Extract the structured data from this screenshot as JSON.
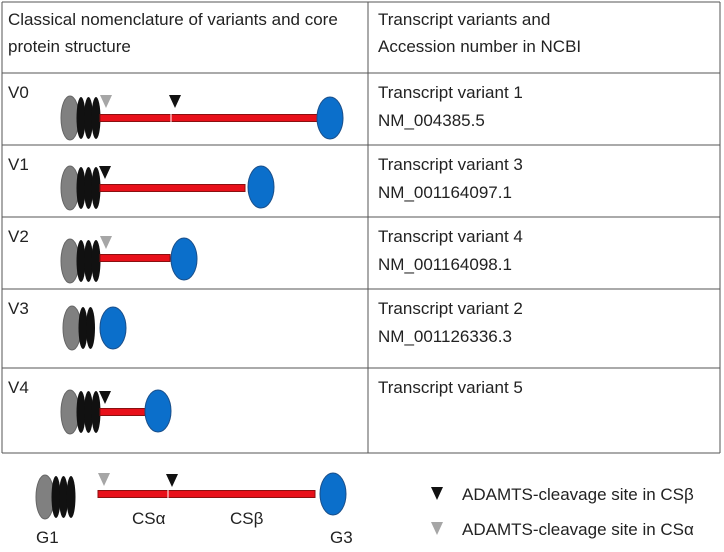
{
  "table": {
    "header": [
      "Classical nomenclature of variants and core protein structure",
      "Transcript variants and Accession number in NCBI"
    ],
    "rows": [
      {
        "variant": "V0",
        "transcript": "Transcript variant 1",
        "accession": "NM_004385.5"
      },
      {
        "variant": "V1",
        "transcript": "Transcript variant 3",
        "accession": "NM_001164097.1"
      },
      {
        "variant": "V2",
        "transcript": "Transcript variant 4",
        "accession": "NM_001164098.1"
      },
      {
        "variant": "V3",
        "transcript": "Transcript variant 2",
        "accession": "NM_001126336.3"
      },
      {
        "variant": "V4",
        "transcript": "Transcript variant 5"
      }
    ]
  },
  "legend": {
    "labels": {
      "g1": "G1",
      "cs_alpha": "CSα",
      "cs_beta": "CSβ",
      "g3": "G3"
    },
    "items": [
      "ADAMTS-cleavage site in CSβ",
      "ADAMTS-cleavage site in CSα"
    ]
  }
}
